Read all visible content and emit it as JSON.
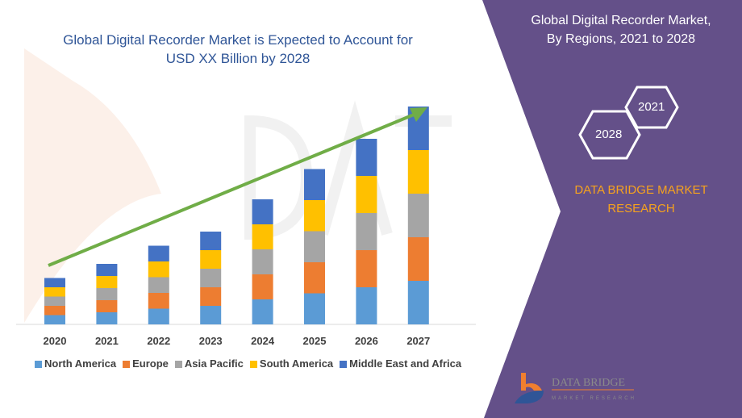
{
  "title_line1": "Global Digital Recorder Market is Expected to Account for",
  "title_line2": "USD XX Billion by 2028",
  "side_panel": {
    "title_line1": "Global Digital Recorder Market,",
    "title_line2": "By Regions, 2021 to 2028",
    "hex_year_a": "2021",
    "hex_year_b": "2028",
    "brand_line1": "DATA BRIDGE MARKET",
    "brand_line2": "RESEARCH",
    "logo_text": "DATA BRIDGE",
    "logo_subtext": "MARKET RESEARCH",
    "panel_color": "#645089",
    "brand_color": "#f6a21e"
  },
  "chart_data": {
    "type": "bar",
    "stacked": true,
    "categories": [
      "2020",
      "2021",
      "2022",
      "2023",
      "2024",
      "2025",
      "2026",
      "2027"
    ],
    "series": [
      {
        "name": "North America",
        "color": "#5b9bd5",
        "values": [
          11.5,
          15,
          19.5,
          23,
          31,
          38.5,
          46,
          54
        ]
      },
      {
        "name": "Europe",
        "color": "#ed7d31",
        "values": [
          11.5,
          15,
          19.5,
          23,
          31,
          38.5,
          46,
          54
        ]
      },
      {
        "name": "Asia Pacific",
        "color": "#a5a5a5",
        "values": [
          11.5,
          15,
          19.5,
          23,
          31,
          38.5,
          46,
          54
        ]
      },
      {
        "name": "South America",
        "color": "#ffc000",
        "values": [
          11.5,
          15,
          19.5,
          23,
          31,
          38.5,
          46,
          54
        ]
      },
      {
        "name": "Middle East and Africa",
        "color": "#4472c4",
        "values": [
          11.5,
          15,
          19.5,
          23,
          31,
          38.5,
          46,
          54
        ]
      }
    ],
    "ylim": [
      0,
      280
    ],
    "y_axis_shown": false,
    "grid": false,
    "legend_position": "bottom",
    "trend_arrow_color": "#70ad47"
  }
}
